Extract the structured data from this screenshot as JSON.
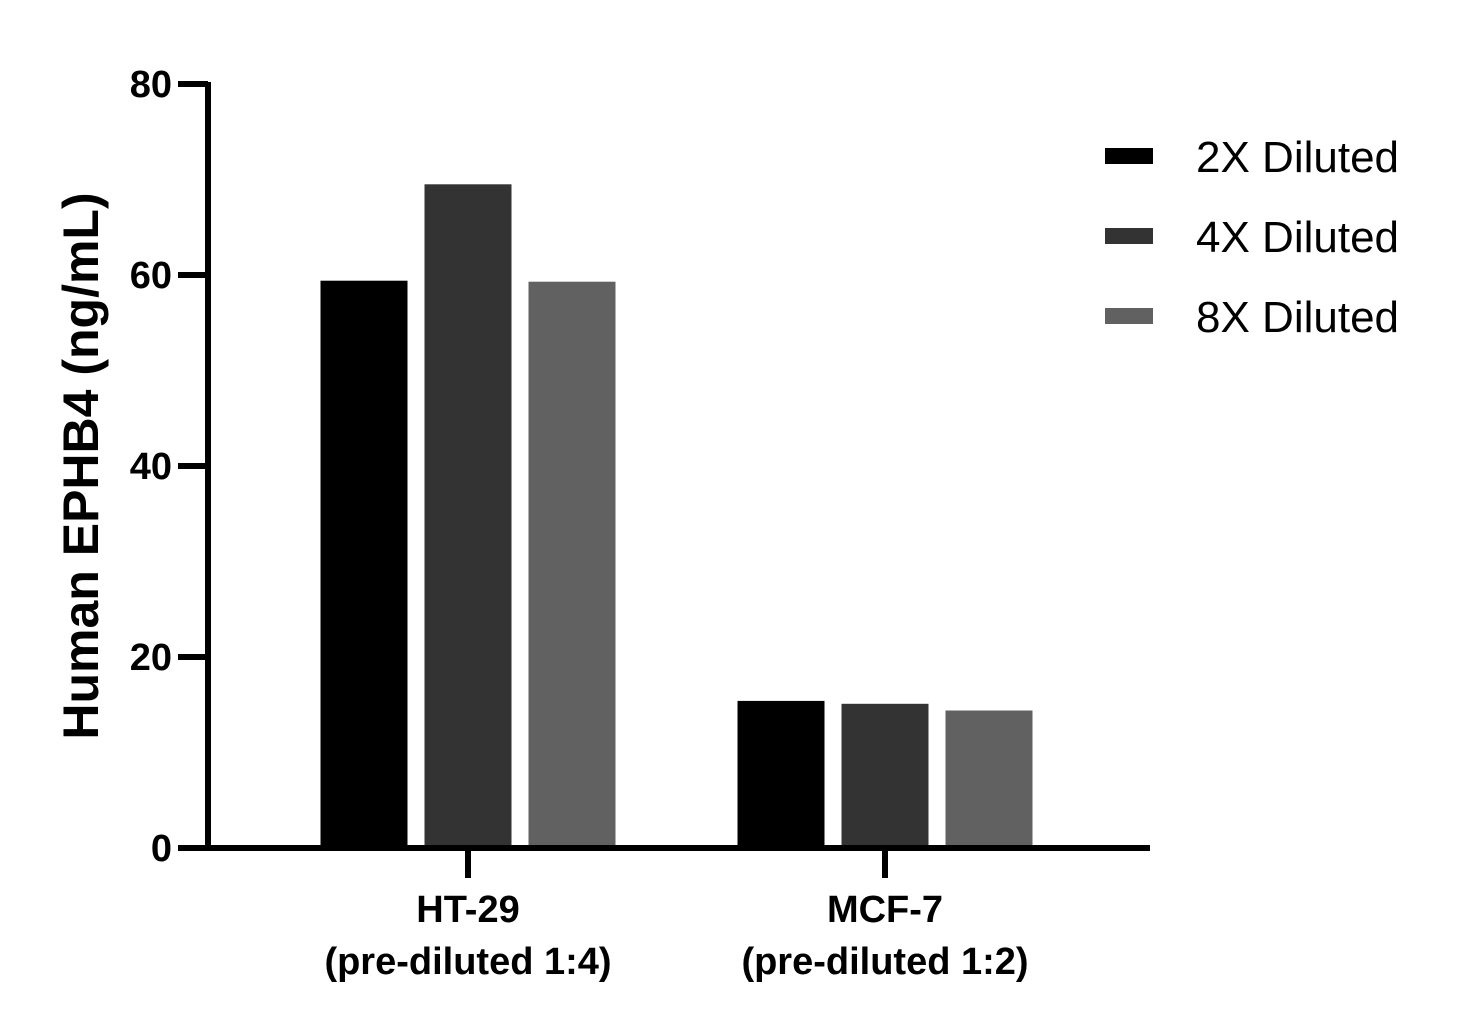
{
  "chart_data": {
    "type": "bar",
    "title": "",
    "ylabel": "Human EPHB4 (ng/mL)",
    "xlabel": "",
    "ylim": [
      0,
      80
    ],
    "yticks": [
      0,
      20,
      40,
      60,
      80
    ],
    "grid": false,
    "legend_position": "top-right",
    "categories": [
      [
        "HT-29",
        "(pre-diluted 1:4)"
      ],
      [
        "MCF-7",
        "(pre-diluted 1:2)"
      ]
    ],
    "series": [
      {
        "name": "2X Diluted",
        "color": "#000000",
        "values": [
          59.4,
          15.4
        ]
      },
      {
        "name": "4X Diluted",
        "color": "#333333",
        "values": [
          69.5,
          15.1
        ]
      },
      {
        "name": "8X Diluted",
        "color": "#616161",
        "values": [
          59.3,
          14.4
        ]
      }
    ]
  }
}
